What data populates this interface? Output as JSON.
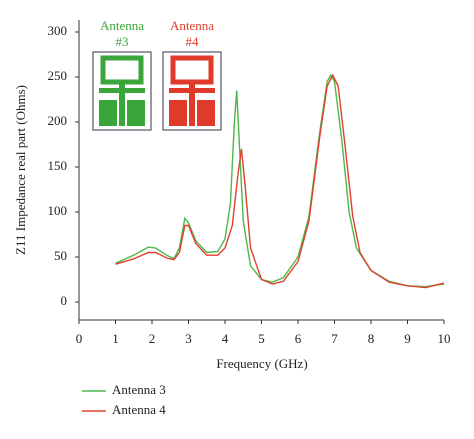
{
  "chart_data": {
    "type": "line",
    "xlabel": "Frequency (GHz)",
    "ylabel": "Z11 Impedance real part (Ohms)",
    "xlim": [
      0,
      10
    ],
    "xticks": [
      0,
      1,
      2,
      3,
      4,
      5,
      6,
      7,
      8,
      9,
      10
    ],
    "ylim": [
      -20,
      300
    ],
    "yticks": [
      0,
      50,
      100,
      150,
      200,
      250,
      300
    ],
    "legend": "bottom-left",
    "insets": [
      {
        "lines": [
          "Antenna",
          "#3"
        ],
        "color": "#3aa53a"
      },
      {
        "lines": [
          "Antenna",
          "#4"
        ],
        "color": "#e03a2a"
      }
    ],
    "series": [
      {
        "name": "Antenna 3",
        "color": "#4cb84c",
        "x": [
          1.0,
          1.5,
          1.9,
          2.1,
          2.4,
          2.6,
          2.75,
          2.9,
          3.0,
          3.2,
          3.5,
          3.8,
          4.0,
          4.15,
          4.25,
          4.32,
          4.4,
          4.5,
          4.7,
          5.0,
          5.3,
          5.6,
          6.0,
          6.3,
          6.6,
          6.8,
          6.9,
          7.0,
          7.2,
          7.4,
          7.6,
          8.0,
          8.5,
          9.0,
          9.5,
          10.0
        ],
        "values": [
          43,
          52,
          61,
          60,
          52,
          48,
          60,
          93,
          88,
          68,
          55,
          56,
          70,
          110,
          195,
          235,
          170,
          90,
          40,
          25,
          22,
          27,
          50,
          95,
          190,
          245,
          252,
          245,
          180,
          100,
          60,
          35,
          23,
          18,
          17,
          20
        ]
      },
      {
        "name": "Antenna 4",
        "color": "#e0402e",
        "x": [
          1.0,
          1.5,
          1.9,
          2.1,
          2.4,
          2.6,
          2.75,
          2.9,
          3.0,
          3.2,
          3.5,
          3.8,
          4.0,
          4.2,
          4.35,
          4.45,
          4.55,
          4.7,
          5.0,
          5.3,
          5.6,
          6.0,
          6.3,
          6.6,
          6.8,
          6.95,
          7.1,
          7.3,
          7.5,
          7.7,
          8.0,
          8.5,
          9.0,
          9.5,
          10.0
        ],
        "values": [
          42,
          48,
          55,
          55,
          49,
          47,
          55,
          85,
          85,
          65,
          52,
          52,
          60,
          85,
          140,
          170,
          130,
          60,
          25,
          20,
          23,
          45,
          90,
          185,
          240,
          252,
          240,
          170,
          95,
          55,
          35,
          22,
          18,
          16,
          21
        ]
      }
    ]
  }
}
